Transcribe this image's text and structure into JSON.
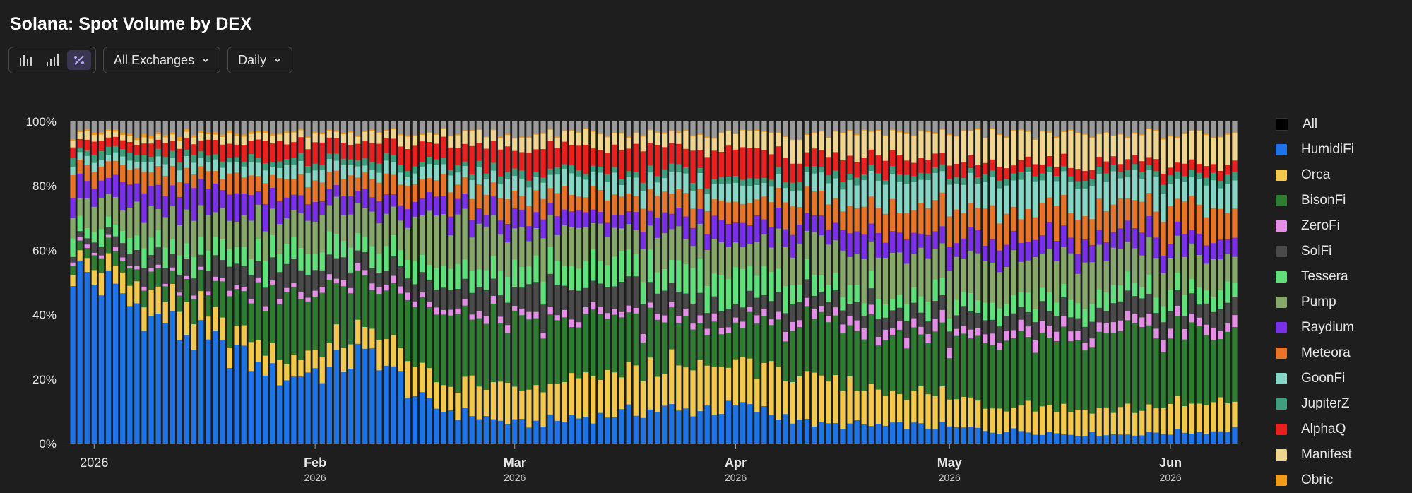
{
  "title": "Solana: Spot Volume by DEX",
  "toolbar": {
    "view_buttons": [
      {
        "icon": "bar-chart-icon"
      },
      {
        "icon": "stacked-bar-icon"
      },
      {
        "icon": "percent-icon",
        "active": true
      }
    ],
    "exchange_dropdown": "All Exchanges",
    "interval_dropdown": "Daily"
  },
  "legend": [
    {
      "label": "All",
      "color": "#000000"
    },
    {
      "label": "HumidiFi",
      "color": "#1e74e6"
    },
    {
      "label": "Orca",
      "color": "#f2c94c"
    },
    {
      "label": "BisonFi",
      "color": "#2e7d32"
    },
    {
      "label": "ZeroFi",
      "color": "#e58ee8"
    },
    {
      "label": "SolFi",
      "color": "#4a4a4a"
    },
    {
      "label": "Tessera",
      "color": "#5fe07a"
    },
    {
      "label": "Pump",
      "color": "#86a86a"
    },
    {
      "label": "Raydium",
      "color": "#7a2fe8"
    },
    {
      "label": "Meteora",
      "color": "#e8742a"
    },
    {
      "label": "GoonFi",
      "color": "#86d6c6"
    },
    {
      "label": "JupiterZ",
      "color": "#3f9e7e"
    },
    {
      "label": "AlphaQ",
      "color": "#e82020"
    },
    {
      "label": "Manifest",
      "color": "#efd58e"
    },
    {
      "label": "Obric",
      "color": "#f29a1a"
    }
  ],
  "chart_data": {
    "type": "bar",
    "stacked": "percent",
    "y_ticks": [
      "0%",
      "20%",
      "40%",
      "60%",
      "80%",
      "100%"
    ],
    "ylim": [
      0,
      100
    ],
    "x_ticks": [
      {
        "label": "2026",
        "sub": "",
        "index": 3,
        "bold": false
      },
      {
        "label": "Feb",
        "sub": "2026",
        "index": 34,
        "bold": true
      },
      {
        "label": "Mar",
        "sub": "2026",
        "index": 62,
        "bold": true
      },
      {
        "label": "Apr",
        "sub": "2026",
        "index": 93,
        "bold": true
      },
      {
        "label": "May",
        "sub": "2026",
        "index": 123,
        "bold": true
      },
      {
        "label": "Jun",
        "sub": "2026",
        "index": 154,
        "bold": true
      }
    ],
    "days": 164,
    "series_order": [
      "HumidiFi",
      "Orca",
      "BisonFi",
      "ZeroFi",
      "SolFi",
      "Tessera",
      "Pump",
      "Raydium",
      "Meteora",
      "GoonFi",
      "JupiterZ",
      "AlphaQ",
      "Manifest",
      "Obric",
      "Other"
    ],
    "other_color": "#9a9a9a",
    "anchors": {
      "d": [
        0,
        15,
        30,
        42,
        50,
        62,
        75,
        93,
        105,
        123,
        140,
        150,
        163
      ],
      "HumidiFi": [
        52,
        35,
        22,
        28,
        12,
        6,
        9,
        11,
        6,
        5,
        3,
        3,
        4
      ],
      "Orca": [
        4,
        8,
        7,
        8,
        9,
        10,
        12,
        13,
        13,
        9,
        8,
        8,
        8
      ],
      "BisonFi": [
        3,
        6,
        20,
        16,
        22,
        19,
        17,
        10,
        19,
        17,
        19,
        22,
        20
      ],
      "ZeroFi": [
        1,
        1,
        1.5,
        2,
        2,
        2,
        2,
        2,
        2.5,
        3,
        3,
        3,
        3
      ],
      "SolFi": [
        2,
        5,
        7,
        5,
        6,
        8,
        8,
        5,
        5,
        5,
        5,
        5,
        5
      ],
      "Tessera": [
        4,
        5,
        7,
        6,
        6,
        7,
        8,
        9,
        5,
        5,
        5,
        5,
        5
      ],
      "Pump": [
        7,
        9,
        11,
        10,
        15,
        11,
        10,
        8,
        12,
        12,
        12,
        10,
        9
      ],
      "Raydium": [
        6,
        8,
        6,
        5,
        5,
        5,
        5,
        6,
        6,
        6,
        6,
        6,
        5
      ],
      "Meteora": [
        5,
        5,
        6,
        5,
        6,
        6,
        6,
        6,
        7,
        9,
        9,
        9,
        9
      ],
      "GoonFi": [
        2,
        3,
        4,
        3,
        4,
        5,
        5,
        5,
        6,
        9,
        9,
        8,
        7
      ],
      "JupiterZ": [
        2,
        2,
        2,
        2,
        2,
        2,
        2,
        2,
        2,
        2,
        2,
        2,
        2
      ],
      "AlphaQ": [
        3,
        4,
        6,
        5,
        6,
        7,
        7,
        8,
        6,
        4,
        3,
        3,
        3
      ],
      "Manifest": [
        2,
        2,
        3,
        3,
        3,
        4,
        4,
        5,
        6,
        8,
        9,
        8,
        8
      ],
      "Obric": [
        0.5,
        1,
        0.5,
        0.5,
        0.3,
        0.3,
        0.3,
        0.3,
        0.3,
        0.3,
        0.3,
        0.3,
        0.3
      ]
    }
  }
}
